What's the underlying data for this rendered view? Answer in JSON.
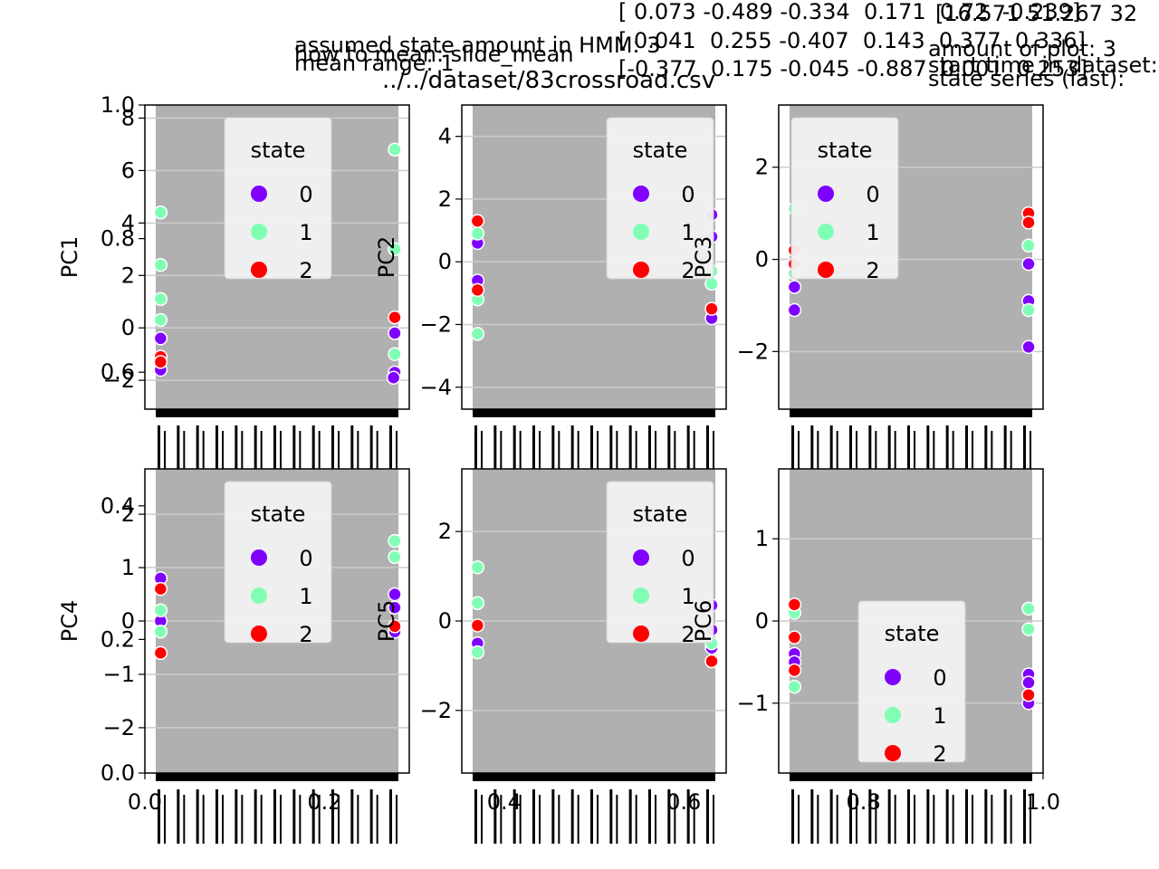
{
  "header": {
    "title": "../../dataset/83crossroad.csv",
    "left_lines": [
      "assumed state amount in HMM: 3",
      "how to mean: slide_mean",
      "mean range: 1"
    ],
    "center_lines": [
      "[ 0.073 -0.489 -0.334  0.171  0.72  -0.239]",
      "[ 0.041  0.255 -0.407  0.143  0.377  0.336]",
      "[-0.377  0.175 -0.045 -0.887  0.001  0.253]"
    ],
    "right_lines": [
      "[16.571 51.267 32",
      "amount of plot: 3",
      "start time in dataset:",
      "state series (last):"
    ]
  },
  "chart_data": [
    {
      "type": "scatter",
      "ylabel": "PC1",
      "ylim": [
        -3.1,
        8.5
      ],
      "yticks": [
        -2,
        0,
        2,
        4,
        6,
        8
      ],
      "legend": {
        "title": "state",
        "entries": [
          "0",
          "1",
          "2"
        ],
        "position": "top-center"
      },
      "series": [
        {
          "name": "0",
          "color": "#8000ff",
          "points": [
            [
              0.02,
              -0.4
            ],
            [
              0.02,
              -1.6
            ],
            [
              0.985,
              -0.2
            ],
            [
              0.985,
              -1.7
            ],
            [
              0.98,
              -1.9
            ]
          ]
        },
        {
          "name": "1",
          "color": "#80ffb4",
          "points": [
            [
              0.02,
              4.4
            ],
            [
              0.02,
              2.4
            ],
            [
              0.02,
              1.1
            ],
            [
              0.02,
              0.3
            ],
            [
              0.985,
              6.8
            ],
            [
              0.985,
              3.0
            ],
            [
              0.985,
              -1.0
            ]
          ]
        },
        {
          "name": "2",
          "color": "#ff0000",
          "points": [
            [
              0.02,
              -1.1
            ],
            [
              0.02,
              -1.3
            ],
            [
              0.985,
              0.4
            ]
          ]
        }
      ]
    },
    {
      "type": "scatter",
      "ylabel": "PC2",
      "ylim": [
        -4.7,
        5.0
      ],
      "yticks": [
        -4,
        -2,
        0,
        2,
        4
      ],
      "legend": {
        "title": "state",
        "entries": [
          "0",
          "1",
          "2"
        ],
        "position": "top-right"
      },
      "series": [
        {
          "name": "0",
          "color": "#8000ff",
          "points": [
            [
              0.02,
              0.6
            ],
            [
              0.02,
              -0.6
            ],
            [
              0.985,
              1.5
            ],
            [
              0.985,
              0.8
            ],
            [
              0.985,
              -1.8
            ]
          ]
        },
        {
          "name": "1",
          "color": "#80ffb4",
          "points": [
            [
              0.02,
              0.9
            ],
            [
              0.02,
              -1.2
            ],
            [
              0.02,
              -2.3
            ],
            [
              0.985,
              -0.7
            ],
            [
              0.985,
              -0.3
            ]
          ]
        },
        {
          "name": "2",
          "color": "#ff0000",
          "points": [
            [
              0.02,
              1.3
            ],
            [
              0.02,
              -0.9
            ],
            [
              0.985,
              -1.5
            ]
          ]
        }
      ]
    },
    {
      "type": "scatter",
      "ylabel": "PC3",
      "ylim": [
        -3.25,
        3.35
      ],
      "yticks": [
        -2,
        0,
        2
      ],
      "legend": {
        "title": "state",
        "entries": [
          "0",
          "1",
          "2"
        ],
        "position": "top-left"
      },
      "series": [
        {
          "name": "0",
          "color": "#8000ff",
          "points": [
            [
              0.02,
              -0.6
            ],
            [
              0.02,
              -1.1
            ],
            [
              0.985,
              -0.1
            ],
            [
              0.985,
              -0.9
            ],
            [
              0.985,
              -1.9
            ]
          ]
        },
        {
          "name": "1",
          "color": "#80ffb4",
          "points": [
            [
              0.02,
              1.1
            ],
            [
              0.02,
              -0.3
            ],
            [
              0.985,
              0.3
            ],
            [
              0.985,
              -1.1
            ]
          ]
        },
        {
          "name": "2",
          "color": "#ff0000",
          "points": [
            [
              0.02,
              0.2
            ],
            [
              0.02,
              -0.1
            ],
            [
              0.985,
              1.0
            ],
            [
              0.985,
              0.8
            ]
          ]
        }
      ]
    },
    {
      "type": "scatter",
      "ylabel": "PC4",
      "ylim": [
        -2.85,
        2.85
      ],
      "yticks": [
        -2,
        -1,
        0,
        1,
        2
      ],
      "legend": {
        "title": "state",
        "entries": [
          "0",
          "1",
          "2"
        ],
        "position": "top-center"
      },
      "series": [
        {
          "name": "0",
          "color": "#8000ff",
          "points": [
            [
              0.02,
              0.8
            ],
            [
              0.02,
              0.0
            ],
            [
              0.985,
              0.5
            ],
            [
              0.985,
              0.25
            ],
            [
              0.985,
              -0.2
            ]
          ]
        },
        {
          "name": "1",
          "color": "#80ffb4",
          "points": [
            [
              0.02,
              0.2
            ],
            [
              0.02,
              -0.2
            ],
            [
              0.985,
              1.5
            ],
            [
              0.985,
              1.2
            ]
          ]
        },
        {
          "name": "2",
          "color": "#ff0000",
          "points": [
            [
              0.02,
              0.6
            ],
            [
              0.02,
              -0.6
            ],
            [
              0.985,
              -0.1
            ]
          ]
        }
      ]
    },
    {
      "type": "scatter",
      "ylabel": "PC5",
      "ylim": [
        -3.4,
        3.4
      ],
      "yticks": [
        -2,
        0,
        2
      ],
      "legend": {
        "title": "state",
        "entries": [
          "0",
          "1",
          "2"
        ],
        "position": "top-right"
      },
      "series": [
        {
          "name": "0",
          "color": "#8000ff",
          "points": [
            [
              0.02,
              -0.5
            ],
            [
              0.985,
              0.35
            ],
            [
              0.985,
              -0.2
            ],
            [
              0.985,
              -0.6
            ]
          ]
        },
        {
          "name": "1",
          "color": "#80ffb4",
          "points": [
            [
              0.02,
              1.2
            ],
            [
              0.02,
              0.4
            ],
            [
              0.02,
              -0.7
            ],
            [
              0.985,
              -0.5
            ]
          ]
        },
        {
          "name": "2",
          "color": "#ff0000",
          "points": [
            [
              0.02,
              -0.1
            ],
            [
              0.985,
              -0.9
            ]
          ]
        }
      ]
    },
    {
      "type": "scatter",
      "ylabel": "PC6",
      "ylim": [
        -1.85,
        1.85
      ],
      "yticks": [
        -1,
        0,
        1
      ],
      "legend": {
        "title": "state",
        "entries": [
          "0",
          "1",
          "2"
        ],
        "position": "lower-right"
      },
      "series": [
        {
          "name": "0",
          "color": "#8000ff",
          "points": [
            [
              0.02,
              -0.4
            ],
            [
              0.02,
              -0.5
            ],
            [
              0.985,
              -0.65
            ],
            [
              0.985,
              -0.75
            ],
            [
              0.985,
              -1.0
            ]
          ]
        },
        {
          "name": "1",
          "color": "#80ffb4",
          "points": [
            [
              0.02,
              0.1
            ],
            [
              0.02,
              -0.8
            ],
            [
              0.985,
              0.15
            ],
            [
              0.985,
              -0.1
            ]
          ]
        },
        {
          "name": "2",
          "color": "#ff0000",
          "points": [
            [
              0.02,
              0.2
            ],
            [
              0.02,
              -0.2
            ],
            [
              0.02,
              -0.6
            ],
            [
              0.985,
              -0.9
            ]
          ]
        }
      ]
    },
    {
      "type": "overlay-axis",
      "yticks": [
        0.0,
        0.2,
        0.4,
        0.6,
        0.8,
        1.0
      ],
      "xticks": [
        0.0,
        0.2,
        0.4,
        0.6,
        0.8,
        1.0
      ]
    }
  ]
}
